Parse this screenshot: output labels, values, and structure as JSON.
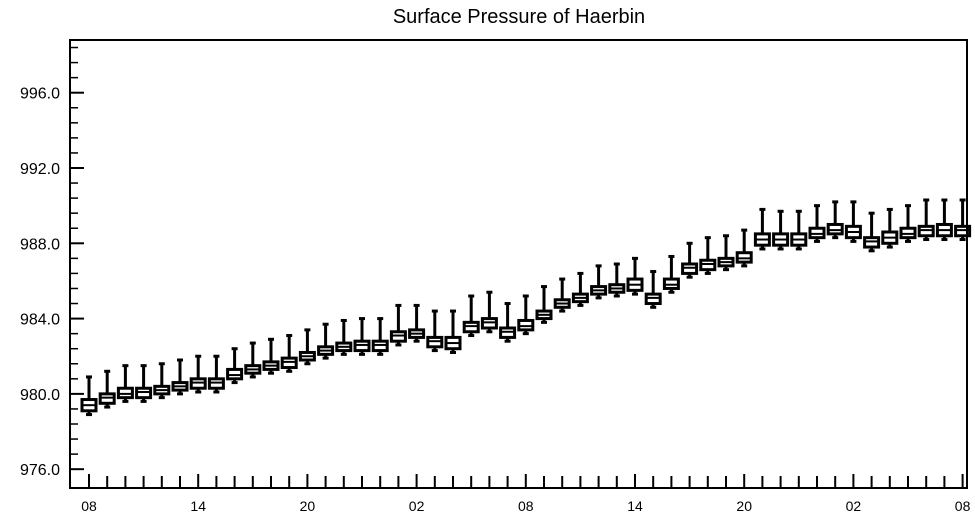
{
  "chart_data": {
    "type": "box",
    "title": "Surface Pressure of Haerbin",
    "xlabel": "",
    "ylabel": "",
    "ylim": [
      975.0,
      998.8
    ],
    "y_major_ticks": [
      976.0,
      980.0,
      984.0,
      988.0,
      992.0,
      996.0
    ],
    "y_tick_labels": [
      "976.0",
      "980.0",
      "984.0",
      "988.0",
      "992.0",
      "996.0"
    ],
    "x_tick_labels": [
      {
        "index": 0,
        "label": "08"
      },
      {
        "index": 6,
        "label": "14"
      },
      {
        "index": 12,
        "label": "20"
      },
      {
        "index": 18,
        "label": "02"
      },
      {
        "index": 24,
        "label": "08"
      },
      {
        "index": 30,
        "label": "14"
      },
      {
        "index": 36,
        "label": "20"
      },
      {
        "index": 42,
        "label": "02"
      },
      {
        "index": 48,
        "label": "08"
      }
    ],
    "grid": false,
    "series": [
      {
        "medians": [
          979.4,
          979.8,
          980.0,
          980.1,
          980.2,
          980.4,
          980.6,
          980.6,
          981.0,
          981.3,
          981.5,
          981.7,
          982.0,
          982.3,
          982.5,
          982.6,
          982.6,
          983.1,
          983.2,
          982.8,
          982.7,
          983.6,
          983.8,
          983.3,
          983.6,
          984.2,
          984.8,
          985.1,
          985.5,
          985.6,
          985.8,
          985.1,
          985.8,
          986.7,
          986.9,
          987.0,
          987.2,
          988.2,
          988.2,
          988.2,
          988.5,
          988.7,
          988.6,
          988.1,
          988.3,
          988.5,
          988.7,
          988.7,
          988.7
        ],
        "q1": [
          979.1,
          979.5,
          979.8,
          979.8,
          980.0,
          980.2,
          980.3,
          980.3,
          980.8,
          981.1,
          981.3,
          981.4,
          981.8,
          982.1,
          982.3,
          982.3,
          982.3,
          982.8,
          983.0,
          982.5,
          982.4,
          983.3,
          983.5,
          983.0,
          983.4,
          984.0,
          984.6,
          984.9,
          985.3,
          985.4,
          985.5,
          984.8,
          985.6,
          986.4,
          986.6,
          986.8,
          987.0,
          987.9,
          987.9,
          987.9,
          988.3,
          988.5,
          988.3,
          987.8,
          988.0,
          988.3,
          988.4,
          988.4,
          988.4
        ],
        "q3": [
          979.7,
          980.0,
          980.3,
          980.3,
          980.4,
          980.6,
          980.8,
          980.8,
          981.3,
          981.5,
          981.7,
          981.9,
          982.2,
          982.5,
          982.7,
          982.8,
          982.8,
          983.3,
          983.4,
          983.0,
          983.0,
          983.8,
          984.0,
          983.5,
          983.9,
          984.4,
          985.0,
          985.3,
          985.7,
          985.8,
          986.1,
          985.3,
          986.1,
          986.9,
          987.1,
          987.2,
          987.5,
          988.5,
          988.5,
          988.5,
          988.8,
          989.0,
          988.9,
          988.3,
          988.6,
          988.8,
          988.9,
          989.0,
          988.9
        ],
        "min": [
          978.9,
          979.3,
          979.6,
          979.6,
          979.8,
          980.0,
          980.1,
          980.1,
          980.6,
          980.9,
          981.1,
          981.2,
          981.6,
          981.9,
          982.1,
          982.1,
          982.1,
          982.6,
          982.8,
          982.3,
          982.2,
          983.1,
          983.3,
          982.8,
          983.2,
          983.8,
          984.4,
          984.7,
          985.1,
          985.2,
          985.3,
          984.6,
          985.4,
          986.2,
          986.4,
          986.6,
          986.8,
          987.7,
          987.7,
          987.7,
          988.1,
          988.3,
          988.1,
          987.6,
          987.8,
          988.1,
          988.2,
          988.2,
          988.2
        ],
        "max": [
          980.9,
          981.2,
          981.5,
          981.5,
          981.6,
          981.8,
          982.0,
          982.0,
          982.4,
          982.7,
          982.9,
          983.1,
          983.4,
          983.7,
          983.9,
          984.0,
          984.0,
          984.7,
          984.7,
          984.4,
          984.4,
          985.2,
          985.4,
          984.8,
          985.2,
          985.7,
          986.1,
          986.4,
          986.8,
          986.9,
          987.2,
          986.5,
          987.3,
          988.0,
          988.3,
          988.4,
          988.7,
          989.8,
          989.7,
          989.7,
          990.0,
          990.2,
          990.2,
          989.6,
          989.8,
          990.0,
          990.3,
          990.3,
          990.3
        ]
      }
    ]
  }
}
